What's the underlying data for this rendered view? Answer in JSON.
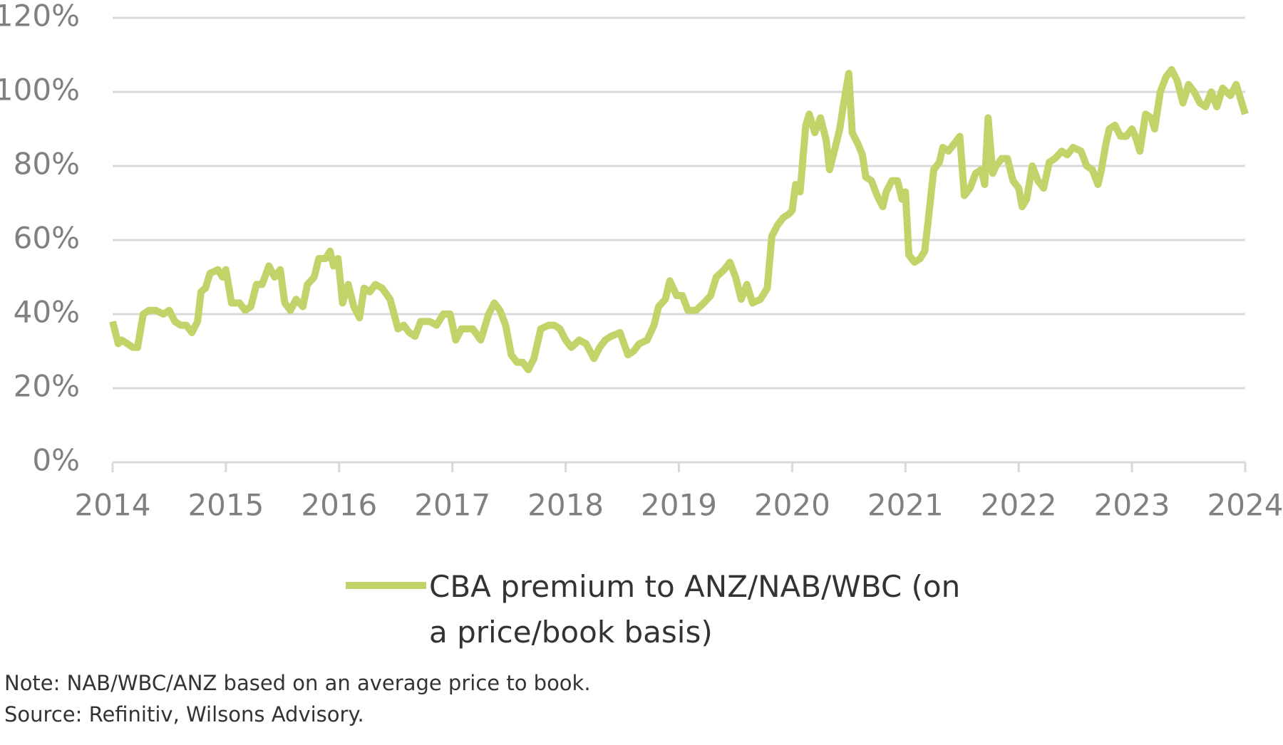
{
  "chart_data": {
    "type": "line",
    "xlim": [
      2014,
      2024
    ],
    "xticks": [
      2014,
      2015,
      2016,
      2017,
      2018,
      2019,
      2020,
      2021,
      2022,
      2023,
      2024
    ],
    "ylim": [
      0,
      120
    ],
    "yticks": [
      {
        "value": 0,
        "label": "0%"
      },
      {
        "value": 20,
        "label": "20%"
      },
      {
        "value": 40,
        "label": "40%"
      },
      {
        "value": 60,
        "label": "60%"
      },
      {
        "value": 80,
        "label": "80%"
      },
      {
        "value": 100,
        "label": "100%"
      },
      {
        "value": 120,
        "label": "120%"
      }
    ],
    "grid": true,
    "x": [
      2014.0,
      2014.05,
      2014.08,
      2014.13,
      2014.18,
      2014.22,
      2014.27,
      2014.32,
      2014.38,
      2014.45,
      2014.5,
      2014.55,
      2014.6,
      2014.65,
      2014.7,
      2014.75,
      2014.78,
      2014.82,
      2014.86,
      2014.93,
      2014.97,
      2015.0,
      2015.05,
      2015.12,
      2015.17,
      2015.22,
      2015.27,
      2015.32,
      2015.38,
      2015.43,
      2015.48,
      2015.52,
      2015.57,
      2015.62,
      2015.68,
      2015.72,
      2015.78,
      2015.82,
      2015.88,
      2015.92,
      2015.95,
      2015.99,
      2016.03,
      2016.08,
      2016.13,
      2016.18,
      2016.22,
      2016.27,
      2016.32,
      2016.38,
      2016.45,
      2016.52,
      2016.57,
      2016.62,
      2016.67,
      2016.72,
      2016.8,
      2016.86,
      2016.92,
      2016.98,
      2017.03,
      2017.08,
      2017.13,
      2017.18,
      2017.25,
      2017.32,
      2017.37,
      2017.42,
      2017.47,
      2017.52,
      2017.57,
      2017.62,
      2017.67,
      2017.72,
      2017.78,
      2017.85,
      2017.9,
      2017.95,
      2018.0,
      2018.05,
      2018.12,
      2018.18,
      2018.25,
      2018.3,
      2018.35,
      2018.4,
      2018.48,
      2018.55,
      2018.6,
      2018.65,
      2018.72,
      2018.78,
      2018.82,
      2018.88,
      2018.92,
      2018.98,
      2019.03,
      2019.08,
      2019.15,
      2019.22,
      2019.28,
      2019.33,
      2019.4,
      2019.45,
      2019.5,
      2019.55,
      2019.6,
      2019.65,
      2019.72,
      2019.78,
      2019.82,
      2019.87,
      2019.92,
      2019.97,
      2020.0,
      2020.03,
      2020.07,
      2020.12,
      2020.15,
      2020.2,
      2020.25,
      2020.3,
      2020.33,
      2020.38,
      2020.42,
      2020.45,
      2020.5,
      2020.53,
      2020.58,
      2020.62,
      2020.65,
      2020.7,
      2020.75,
      2020.8,
      2020.83,
      2020.88,
      2020.93,
      2020.97,
      2021.0,
      2021.03,
      2021.08,
      2021.13,
      2021.17,
      2021.2,
      2021.25,
      2021.3,
      2021.33,
      2021.38,
      2021.43,
      2021.48,
      2021.52,
      2021.57,
      2021.62,
      2021.67,
      2021.7,
      2021.73,
      2021.77,
      2021.8,
      2021.85,
      2021.9,
      2021.95,
      2022.0,
      2022.03,
      2022.07,
      2022.12,
      2022.17,
      2022.22,
      2022.27,
      2022.32,
      2022.38,
      2022.43,
      2022.48,
      2022.55,
      2022.6,
      2022.65,
      2022.7,
      2022.73,
      2022.77,
      2022.8,
      2022.85,
      2022.9,
      2022.95,
      2023.0,
      2023.03,
      2023.07,
      2023.12,
      2023.17,
      2023.2,
      2023.25,
      2023.3,
      2023.35,
      2023.4,
      2023.45,
      2023.5,
      2023.55,
      2023.6,
      2023.65,
      2023.7,
      2023.75,
      2023.8,
      2023.87,
      2023.92,
      2023.97,
      2024.0
    ],
    "series": [
      {
        "name": "CBA premium to ANZ/NAB/WBC (on a price/book basis)",
        "color": "#c3d36a",
        "values": [
          38,
          32,
          33,
          32,
          31,
          31,
          40,
          41,
          41,
          40,
          41,
          38,
          37,
          37,
          35,
          38,
          46,
          47,
          51,
          52,
          50,
          52,
          43,
          43,
          41,
          42,
          48,
          48,
          53,
          50,
          52,
          43,
          41,
          44,
          42,
          48,
          50,
          55,
          55,
          57,
          53,
          55,
          43,
          48,
          42,
          39,
          47,
          46,
          48,
          47,
          44,
          36,
          37,
          35,
          34,
          38,
          38,
          37,
          40,
          40,
          33,
          36,
          36,
          36,
          33,
          40,
          43,
          41,
          37,
          29,
          27,
          27,
          25,
          28,
          36,
          37,
          37,
          36,
          33,
          31,
          33,
          32,
          28,
          31,
          33,
          34,
          35,
          29,
          30,
          32,
          33,
          37,
          42,
          44,
          49,
          45,
          45,
          41,
          41,
          43,
          45,
          50,
          52,
          54,
          50,
          44,
          48,
          43,
          44,
          47,
          61,
          64,
          66,
          67,
          68,
          75,
          73,
          91,
          94,
          89,
          93,
          87,
          79,
          85,
          90,
          96,
          105,
          89,
          86,
          83,
          77,
          76,
          72,
          69,
          73,
          76,
          76,
          71,
          73,
          56,
          54,
          55,
          57,
          65,
          79,
          81,
          85,
          84,
          86,
          88,
          72,
          74,
          78,
          79,
          75,
          93,
          78,
          80,
          82,
          82,
          76,
          74,
          69,
          71,
          80,
          76,
          74,
          81,
          82,
          84,
          83,
          85,
          84,
          80,
          79,
          75,
          79,
          86,
          90,
          91,
          88,
          88,
          90,
          88,
          84,
          94,
          93,
          90,
          100,
          104,
          106,
          103,
          97,
          102,
          100,
          97,
          96,
          100,
          96,
          101,
          99,
          102,
          97,
          94
        ]
      }
    ],
    "notes": [
      "Note: NAB/WBC/ANZ based on an average price to book.",
      "Source: Refinitiv, Wilsons Advisory."
    ]
  }
}
